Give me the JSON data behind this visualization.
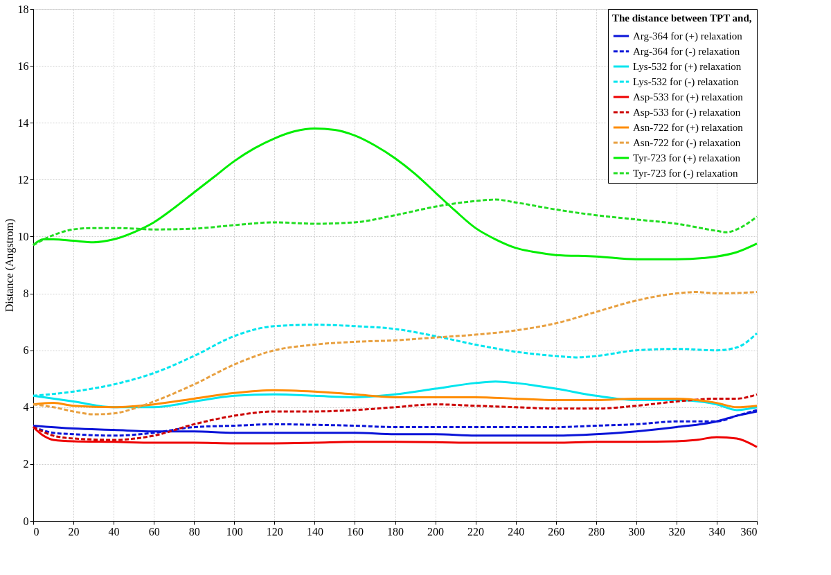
{
  "chart_data": {
    "type": "line",
    "ylabel": "Distance (Angstrom)",
    "legend_title": "The distance between TPT and,",
    "legend": "top right",
    "grid": true,
    "xlim": [
      0,
      360
    ],
    "xticks": [
      0,
      20,
      40,
      60,
      80,
      100,
      120,
      140,
      160,
      180,
      200,
      220,
      240,
      260,
      280,
      300,
      320,
      340,
      360
    ],
    "ylim": [
      0,
      18
    ],
    "yticks": [
      0,
      2,
      4,
      6,
      8,
      10,
      12,
      14,
      16,
      18
    ],
    "series": [
      {
        "name": "Arg-364 for (+) relaxation",
        "color": "#0a14d8",
        "line_style": "solid",
        "x": [
          0,
          20,
          40,
          60,
          80,
          100,
          120,
          140,
          160,
          180,
          200,
          220,
          240,
          260,
          280,
          300,
          320,
          340,
          350,
          360
        ],
        "values": [
          3.35,
          3.25,
          3.2,
          3.15,
          3.15,
          3.1,
          3.1,
          3.1,
          3.1,
          3.05,
          3.05,
          3.0,
          3.0,
          3.0,
          3.05,
          3.15,
          3.3,
          3.5,
          3.7,
          3.85
        ]
      },
      {
        "name": "Arg-364 for (-) relaxation",
        "color": "#0a14d8",
        "line_style": "dashed",
        "x": [
          0,
          10,
          20,
          40,
          60,
          80,
          100,
          120,
          140,
          160,
          180,
          200,
          220,
          240,
          260,
          280,
          300,
          320,
          340,
          350,
          360
        ],
        "values": [
          3.3,
          3.1,
          3.05,
          3.0,
          3.1,
          3.3,
          3.35,
          3.4,
          3.38,
          3.35,
          3.3,
          3.3,
          3.3,
          3.3,
          3.3,
          3.35,
          3.4,
          3.5,
          3.5,
          3.7,
          3.9
        ]
      },
      {
        "name": "Lys-532 for (+) relaxation",
        "color": "#00e5ee",
        "line_style": "solid",
        "x": [
          0,
          20,
          40,
          60,
          80,
          100,
          120,
          140,
          160,
          180,
          200,
          220,
          230,
          240,
          260,
          280,
          300,
          320,
          340,
          350,
          360
        ],
        "values": [
          4.4,
          4.2,
          4.0,
          4.0,
          4.2,
          4.4,
          4.45,
          4.4,
          4.35,
          4.45,
          4.65,
          4.85,
          4.9,
          4.85,
          4.65,
          4.4,
          4.25,
          4.25,
          4.1,
          3.9,
          4.0
        ]
      },
      {
        "name": "Lys-532 for (-) relaxation",
        "color": "#00e5ee",
        "line_style": "dashed",
        "x": [
          0,
          20,
          40,
          60,
          80,
          100,
          120,
          140,
          160,
          180,
          200,
          220,
          240,
          260,
          270,
          280,
          300,
          320,
          340,
          350,
          360
        ],
        "values": [
          4.4,
          4.55,
          4.8,
          5.2,
          5.8,
          6.5,
          6.85,
          6.9,
          6.85,
          6.75,
          6.5,
          6.2,
          5.95,
          5.8,
          5.75,
          5.8,
          6.0,
          6.05,
          6.0,
          6.1,
          6.6
        ]
      },
      {
        "name": "Asp-533 for (+) relaxation",
        "color": "#ee0000",
        "line_style": "solid",
        "x": [
          0,
          5,
          10,
          20,
          40,
          60,
          80,
          100,
          120,
          140,
          160,
          180,
          200,
          220,
          240,
          260,
          280,
          300,
          320,
          330,
          340,
          350,
          360
        ],
        "values": [
          3.3,
          3.0,
          2.85,
          2.8,
          2.78,
          2.75,
          2.75,
          2.73,
          2.73,
          2.75,
          2.78,
          2.78,
          2.77,
          2.75,
          2.75,
          2.75,
          2.78,
          2.78,
          2.8,
          2.85,
          2.95,
          2.9,
          2.6
        ]
      },
      {
        "name": "Asp-533 for (-) relaxation",
        "color": "#cc0000",
        "line_style": "dashed",
        "x": [
          0,
          10,
          20,
          40,
          60,
          80,
          100,
          120,
          140,
          160,
          180,
          200,
          220,
          240,
          260,
          280,
          300,
          320,
          340,
          350,
          360
        ],
        "values": [
          3.3,
          3.0,
          2.9,
          2.85,
          3.0,
          3.4,
          3.7,
          3.85,
          3.85,
          3.9,
          4.0,
          4.1,
          4.05,
          4.0,
          3.95,
          3.95,
          4.05,
          4.2,
          4.3,
          4.3,
          4.45
        ]
      },
      {
        "name": "Asn-722 for (+) relaxation",
        "color": "#ff8c00",
        "line_style": "solid",
        "x": [
          0,
          10,
          20,
          40,
          60,
          80,
          100,
          120,
          140,
          160,
          180,
          200,
          220,
          240,
          260,
          280,
          300,
          320,
          340,
          350,
          360
        ],
        "values": [
          4.1,
          4.15,
          4.05,
          4.0,
          4.1,
          4.3,
          4.5,
          4.6,
          4.55,
          4.45,
          4.35,
          4.35,
          4.35,
          4.3,
          4.25,
          4.25,
          4.3,
          4.3,
          4.15,
          4.0,
          4.05
        ]
      },
      {
        "name": "Asn-722 for (-) relaxation",
        "color": "#e8a040",
        "line_style": "dashed",
        "x": [
          0,
          10,
          20,
          30,
          40,
          50,
          60,
          80,
          100,
          120,
          140,
          160,
          180,
          200,
          220,
          240,
          260,
          280,
          300,
          320,
          330,
          340,
          360
        ],
        "values": [
          4.1,
          4.0,
          3.85,
          3.75,
          3.78,
          3.95,
          4.2,
          4.8,
          5.5,
          6.0,
          6.2,
          6.3,
          6.35,
          6.45,
          6.55,
          6.7,
          6.95,
          7.35,
          7.75,
          8.0,
          8.05,
          8.0,
          8.05
        ]
      },
      {
        "name": "Tyr-723 for (+) relaxation",
        "color": "#00ee00",
        "line_style": "solid",
        "x": [
          0,
          5,
          10,
          20,
          30,
          40,
          50,
          60,
          70,
          80,
          90,
          100,
          110,
          120,
          130,
          140,
          150,
          160,
          170,
          180,
          190,
          200,
          210,
          220,
          230,
          240,
          250,
          260,
          280,
          300,
          320,
          340,
          350,
          360
        ],
        "values": [
          9.7,
          9.9,
          9.9,
          9.85,
          9.8,
          9.9,
          10.15,
          10.5,
          11.0,
          11.55,
          12.1,
          12.65,
          13.1,
          13.45,
          13.7,
          13.8,
          13.75,
          13.55,
          13.2,
          12.75,
          12.2,
          11.55,
          10.9,
          10.3,
          9.9,
          9.6,
          9.45,
          9.35,
          9.3,
          9.2,
          9.2,
          9.3,
          9.45,
          9.75
        ]
      },
      {
        "name": "Tyr-723 for (-) relaxation",
        "color": "#22dd22",
        "line_style": "dashed",
        "x": [
          0,
          10,
          20,
          30,
          40,
          50,
          60,
          80,
          100,
          120,
          140,
          160,
          180,
          200,
          220,
          230,
          240,
          260,
          280,
          300,
          320,
          340,
          345,
          350,
          360
        ],
        "values": [
          9.7,
          10.05,
          10.25,
          10.3,
          10.3,
          10.28,
          10.25,
          10.28,
          10.4,
          10.5,
          10.45,
          10.5,
          10.75,
          11.05,
          11.25,
          11.3,
          11.2,
          10.95,
          10.75,
          10.6,
          10.45,
          10.2,
          10.15,
          10.25,
          10.7
        ]
      }
    ]
  }
}
